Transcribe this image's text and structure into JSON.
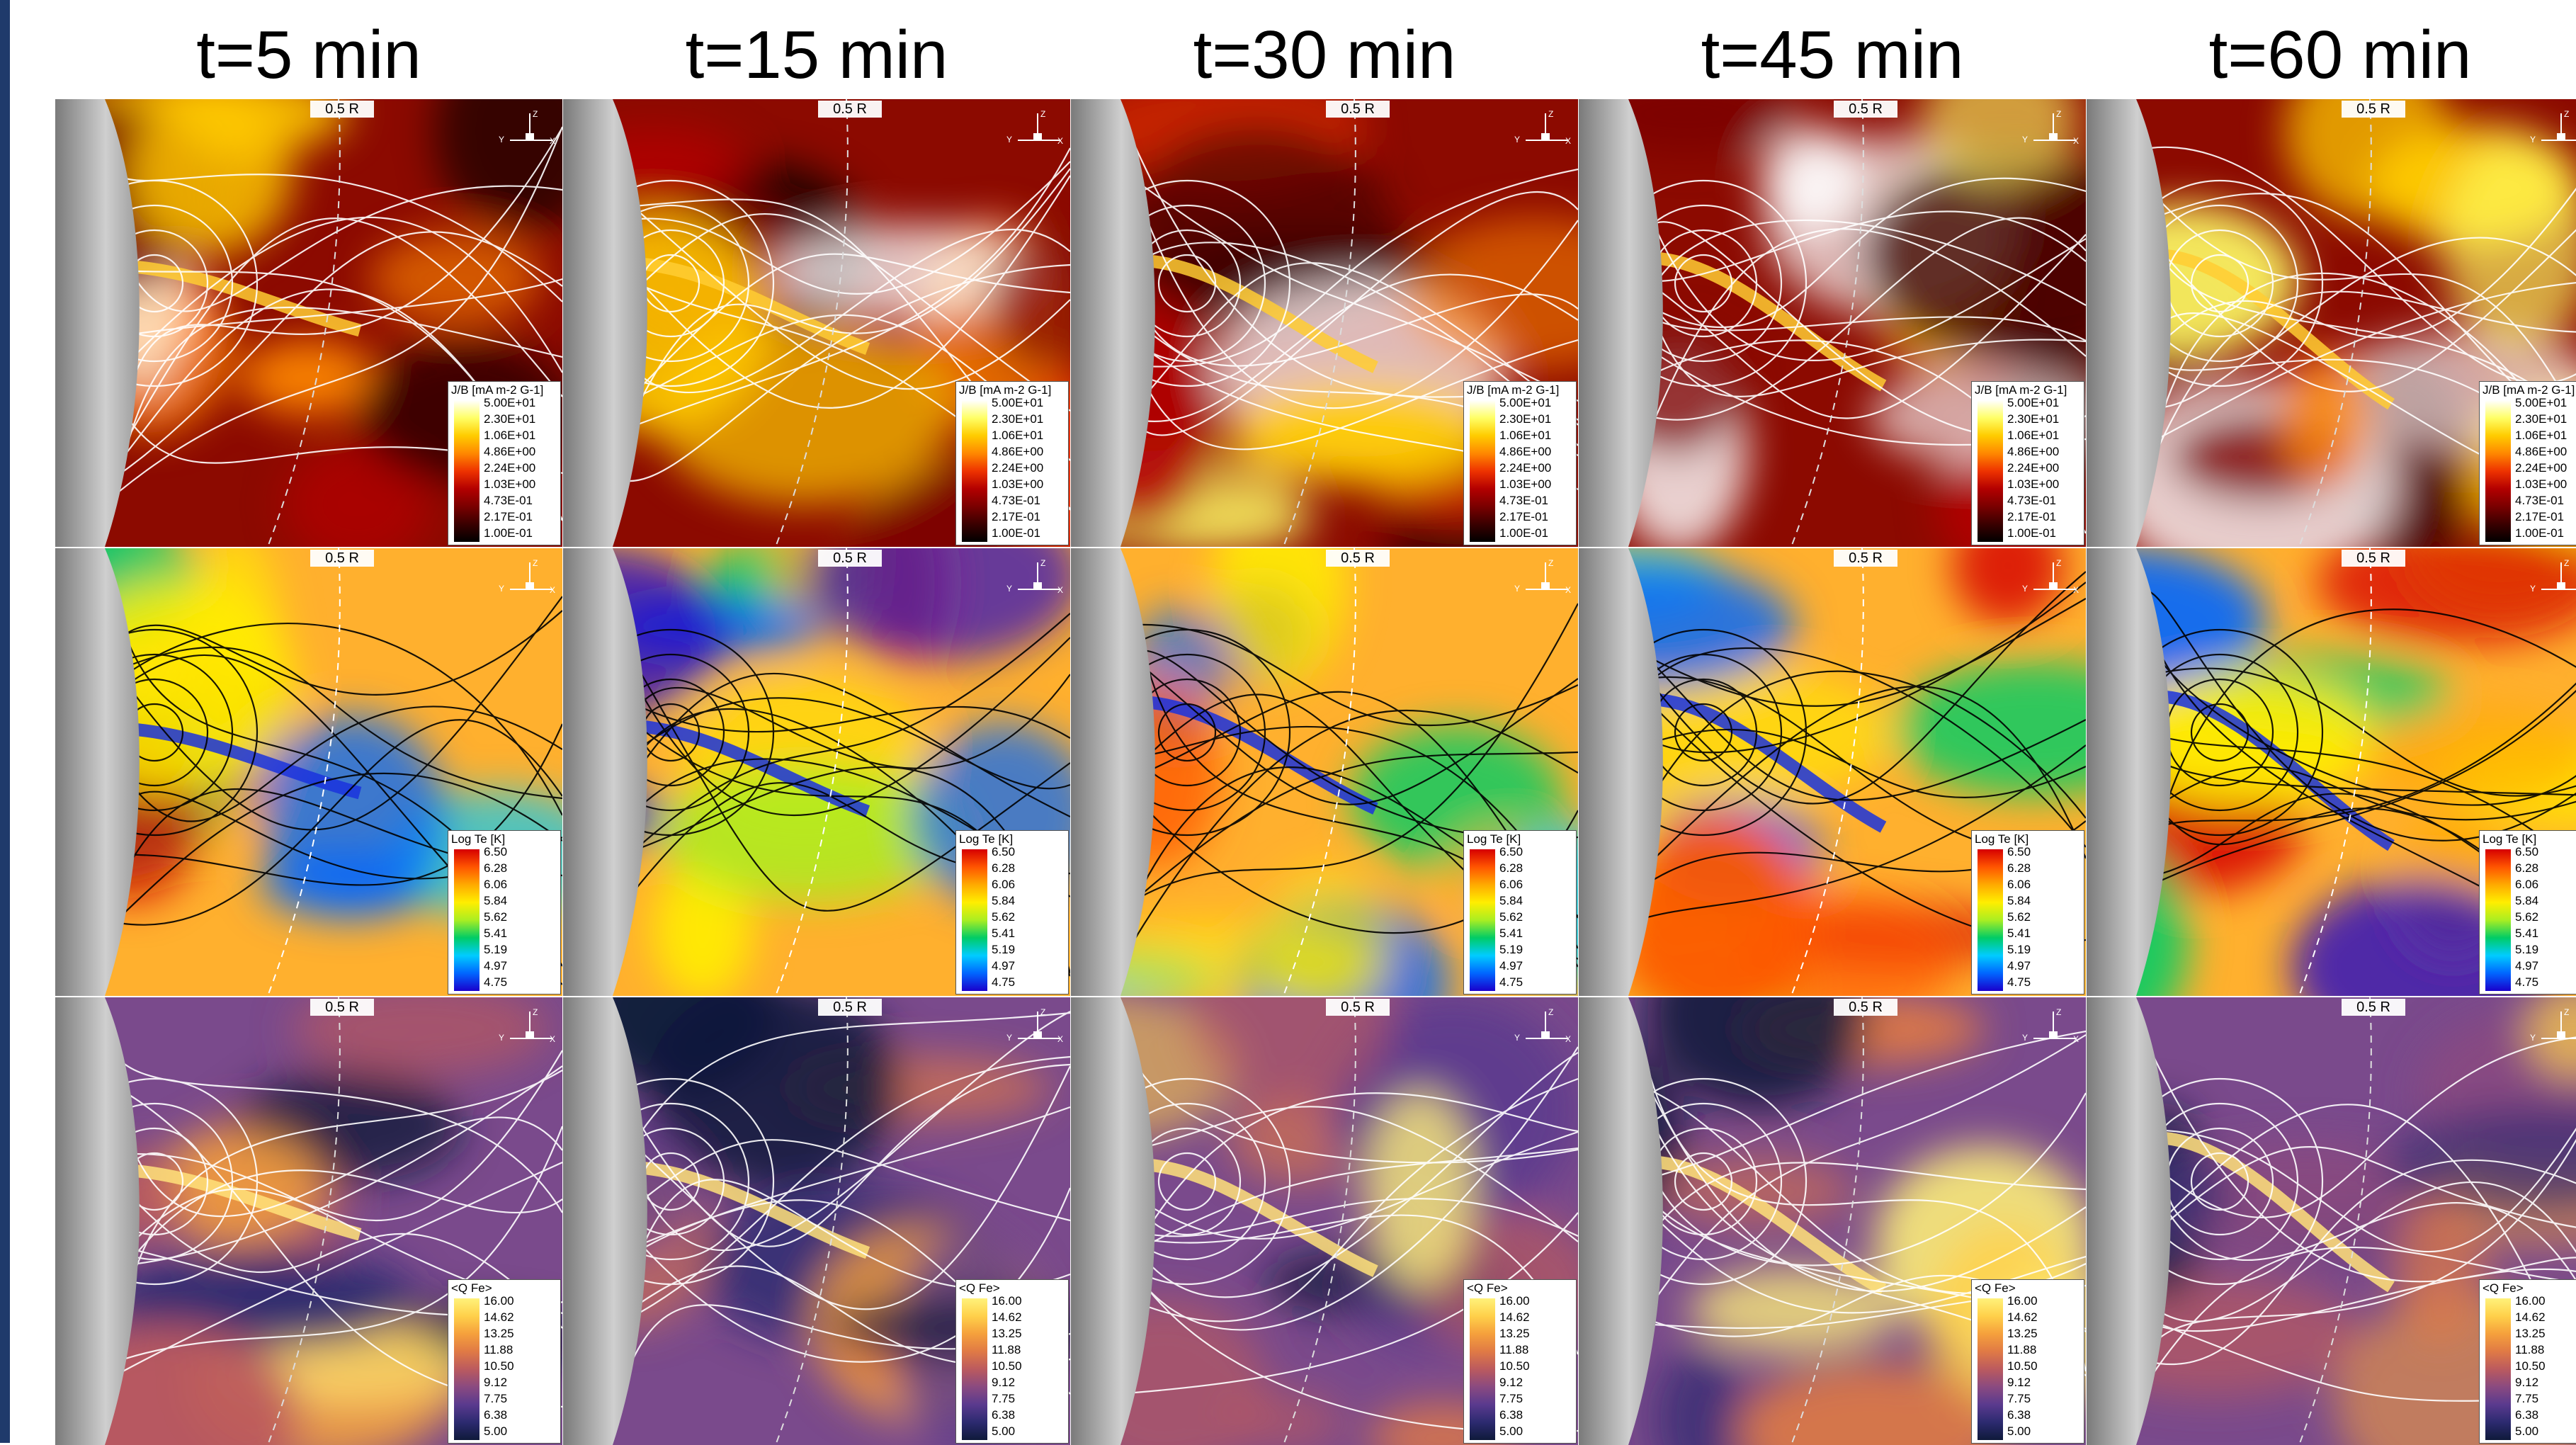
{
  "figure": {
    "columns": [
      "t=5 min",
      "t=15 min",
      "t=30 min",
      "t=45 min",
      "t=60 min"
    ],
    "scale_label": "0.5 R",
    "axis_labels": {
      "y": "Y",
      "z": "Z",
      "x": "X"
    }
  },
  "rows": [
    {
      "legend_title": "J/B [mA m-2 G-1]",
      "legend_ticks": [
        "5.00E+01",
        "2.30E+01",
        "1.06E+01",
        "4.86E+00",
        "2.24E+00",
        "1.03E+00",
        "4.73E-01",
        "2.17E-01",
        "1.00E-01"
      ],
      "colormap": [
        "#ffffff",
        "#ffff66",
        "#ffcc00",
        "#ff8800",
        "#ee3300",
        "#b30000",
        "#7a0000",
        "#3a0000",
        "#000000"
      ],
      "background": "#8c0a00",
      "line_color": "#ffffff"
    },
    {
      "legend_title": "Log Te [K]",
      "legend_ticks": [
        "6.50",
        "6.28",
        "6.06",
        "5.84",
        "5.62",
        "5.41",
        "5.19",
        "4.97",
        "4.75"
      ],
      "colormap": [
        "#d60000",
        "#ff5500",
        "#ffaa00",
        "#ffee00",
        "#aaee22",
        "#00cc66",
        "#00ccff",
        "#0066ff",
        "#1a00cc"
      ],
      "background": "#ffb02e",
      "line_color": "#000000"
    },
    {
      "legend_title": "<Q Fe>",
      "legend_ticks": [
        "16.00",
        "14.62",
        "13.25",
        "11.88",
        "10.50",
        "9.12",
        "7.75",
        "6.38",
        "5.00"
      ],
      "colormap": [
        "#fff27a",
        "#ffd04a",
        "#f5a03c",
        "#e07a45",
        "#bb5a5e",
        "#8a4a80",
        "#5a3a8e",
        "#2c2a70",
        "#0f1a3a"
      ],
      "background": "#7a4a8c",
      "line_color": "#ffffff"
    }
  ]
}
